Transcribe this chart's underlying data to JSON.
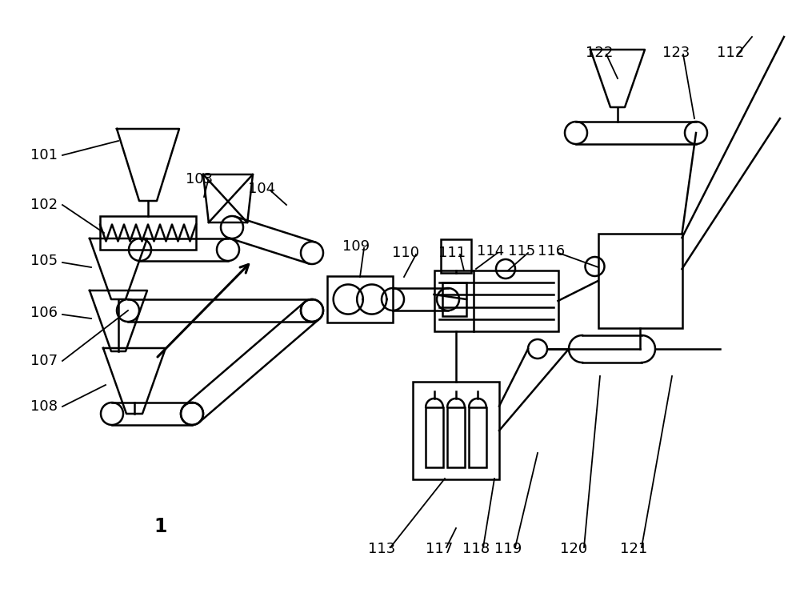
{
  "bg_color": "#ffffff",
  "line_color": "#000000",
  "figsize": [
    10.0,
    7.66
  ],
  "dpi": 100
}
